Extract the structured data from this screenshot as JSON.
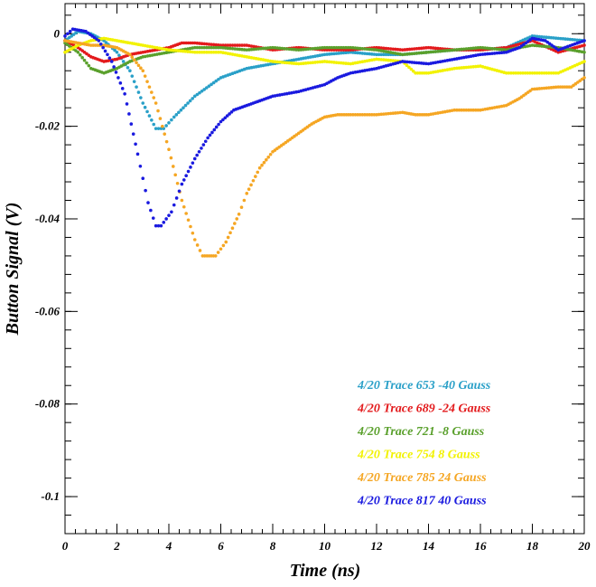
{
  "chart_data": {
    "type": "scatter",
    "title": "",
    "xlabel": "Time (ns)",
    "ylabel": "Button Signal (V)",
    "xlim": [
      0,
      20
    ],
    "ylim": [
      -0.108,
      0.0065
    ],
    "x_ticks": [
      0,
      2,
      4,
      6,
      8,
      10,
      12,
      14,
      16,
      18,
      20
    ],
    "y_ticks": [
      0,
      -0.02,
      -0.04,
      -0.06,
      -0.08,
      -0.1
    ],
    "x_tick_labels": [
      "0",
      "2",
      "4",
      "6",
      "8",
      "10",
      "12",
      "14",
      "16",
      "18",
      "20"
    ],
    "y_tick_labels": [
      "0",
      "-0.02",
      "-0.04",
      "-0.06",
      "-0.08",
      "-0.1"
    ],
    "grid": false,
    "legend_position": "bottom-right",
    "series": [
      {
        "name": "4/20 Trace 653  -40 Gauss",
        "color": "#2aa0c8",
        "points": [
          [
            0,
            -0.0015
          ],
          [
            0.5,
            0.0005
          ],
          [
            1,
            0.0
          ],
          [
            1.5,
            -0.0015
          ],
          [
            2,
            -0.004
          ],
          [
            2.5,
            -0.008
          ],
          [
            3,
            -0.015
          ],
          [
            3.5,
            -0.0205
          ],
          [
            3.8,
            -0.0205
          ],
          [
            4.2,
            -0.018
          ],
          [
            5,
            -0.0135
          ],
          [
            6,
            -0.0095
          ],
          [
            7,
            -0.0075
          ],
          [
            8,
            -0.0065
          ],
          [
            9,
            -0.0055
          ],
          [
            10,
            -0.0045
          ],
          [
            11,
            -0.004
          ],
          [
            12,
            -0.0045
          ],
          [
            13,
            -0.0045
          ],
          [
            14,
            -0.004
          ],
          [
            15,
            -0.0035
          ],
          [
            16,
            -0.0035
          ],
          [
            17,
            -0.003
          ],
          [
            18,
            -0.0005
          ],
          [
            19,
            -0.001
          ],
          [
            20,
            -0.0015
          ]
        ]
      },
      {
        "name": "4/20 Trace 689  -24 Gauss",
        "color": "#e31a1c",
        "points": [
          [
            0,
            -0.0015
          ],
          [
            0.5,
            -0.003
          ],
          [
            1,
            -0.005
          ],
          [
            1.5,
            -0.006
          ],
          [
            2,
            -0.0055
          ],
          [
            2.5,
            -0.0045
          ],
          [
            3,
            -0.004
          ],
          [
            4,
            -0.003
          ],
          [
            4.5,
            -0.002
          ],
          [
            5,
            -0.002
          ],
          [
            6,
            -0.0025
          ],
          [
            7,
            -0.0025
          ],
          [
            8,
            -0.0035
          ],
          [
            9,
            -0.003
          ],
          [
            10,
            -0.0035
          ],
          [
            11,
            -0.0035
          ],
          [
            12,
            -0.003
          ],
          [
            13,
            -0.0035
          ],
          [
            14,
            -0.003
          ],
          [
            15,
            -0.0035
          ],
          [
            16,
            -0.0035
          ],
          [
            17,
            -0.003
          ],
          [
            18,
            -0.0015
          ],
          [
            19,
            -0.004
          ],
          [
            20,
            -0.0025
          ]
        ]
      },
      {
        "name": "4/20 Trace 721  -8 Gauss",
        "color": "#5aa02c",
        "points": [
          [
            0,
            -0.002
          ],
          [
            0.5,
            -0.004
          ],
          [
            1,
            -0.0075
          ],
          [
            1.5,
            -0.0085
          ],
          [
            2,
            -0.0075
          ],
          [
            2.5,
            -0.006
          ],
          [
            3,
            -0.005
          ],
          [
            4,
            -0.004
          ],
          [
            5,
            -0.003
          ],
          [
            6,
            -0.003
          ],
          [
            7,
            -0.0035
          ],
          [
            8,
            -0.003
          ],
          [
            9,
            -0.0035
          ],
          [
            10,
            -0.003
          ],
          [
            11,
            -0.003
          ],
          [
            12,
            -0.0035
          ],
          [
            13,
            -0.0045
          ],
          [
            14,
            -0.004
          ],
          [
            15,
            -0.0035
          ],
          [
            16,
            -0.003
          ],
          [
            17,
            -0.0035
          ],
          [
            18,
            -0.0025
          ],
          [
            19,
            -0.003
          ],
          [
            20,
            -0.004
          ]
        ]
      },
      {
        "name": "4/20 Trace 754  8 Gauss",
        "color": "#f2f200",
        "points": [
          [
            0,
            -0.004
          ],
          [
            0.5,
            -0.0025
          ],
          [
            1,
            -0.0015
          ],
          [
            1.5,
            -0.001
          ],
          [
            2,
            -0.0015
          ],
          [
            2.5,
            -0.002
          ],
          [
            3,
            -0.0025
          ],
          [
            4,
            -0.0035
          ],
          [
            5,
            -0.004
          ],
          [
            6,
            -0.004
          ],
          [
            7,
            -0.005
          ],
          [
            8,
            -0.006
          ],
          [
            9,
            -0.0065
          ],
          [
            10,
            -0.006
          ],
          [
            11,
            -0.0065
          ],
          [
            12,
            -0.0055
          ],
          [
            13,
            -0.006
          ],
          [
            13.5,
            -0.0085
          ],
          [
            14,
            -0.0085
          ],
          [
            15,
            -0.0075
          ],
          [
            16,
            -0.007
          ],
          [
            17,
            -0.0085
          ],
          [
            18,
            -0.0085
          ],
          [
            19,
            -0.0085
          ],
          [
            20,
            -0.006
          ]
        ]
      },
      {
        "name": "4/20 Trace 785  24 Gauss",
        "color": "#f5a623",
        "points": [
          [
            0,
            -0.0015
          ],
          [
            0.5,
            -0.002
          ],
          [
            1,
            -0.0025
          ],
          [
            1.5,
            -0.0025
          ],
          [
            2,
            -0.003
          ],
          [
            2.5,
            -0.0045
          ],
          [
            3,
            -0.008
          ],
          [
            3.5,
            -0.015
          ],
          [
            4,
            -0.025
          ],
          [
            4.5,
            -0.036
          ],
          [
            5,
            -0.0445
          ],
          [
            5.3,
            -0.048
          ],
          [
            5.8,
            -0.048
          ],
          [
            6.2,
            -0.045
          ],
          [
            6.7,
            -0.039
          ],
          [
            7,
            -0.0345
          ],
          [
            7.5,
            -0.029
          ],
          [
            8,
            -0.0255
          ],
          [
            8.5,
            -0.0235
          ],
          [
            9,
            -0.0215
          ],
          [
            9.5,
            -0.0195
          ],
          [
            10,
            -0.018
          ],
          [
            10.5,
            -0.0175
          ],
          [
            11,
            -0.0175
          ],
          [
            12,
            -0.0175
          ],
          [
            13,
            -0.017
          ],
          [
            13.5,
            -0.0175
          ],
          [
            14,
            -0.0175
          ],
          [
            15,
            -0.0165
          ],
          [
            16,
            -0.0165
          ],
          [
            17,
            -0.0155
          ],
          [
            17.5,
            -0.014
          ],
          [
            18,
            -0.012
          ],
          [
            19,
            -0.0115
          ],
          [
            19.5,
            -0.0115
          ],
          [
            20,
            -0.0095
          ]
        ]
      },
      {
        "name": "4/20 Trace 817  40 Gauss",
        "color": "#1a1adf",
        "points": [
          [
            0,
            -0.0005
          ],
          [
            0.3,
            0.001
          ],
          [
            0.8,
            0.0005
          ],
          [
            1.3,
            -0.0015
          ],
          [
            1.8,
            -0.006
          ],
          [
            2.3,
            -0.013
          ],
          [
            2.8,
            -0.026
          ],
          [
            3.2,
            -0.0365
          ],
          [
            3.5,
            -0.0415
          ],
          [
            3.7,
            -0.0415
          ],
          [
            4.1,
            -0.0385
          ],
          [
            4.5,
            -0.0325
          ],
          [
            5,
            -0.027
          ],
          [
            5.5,
            -0.0225
          ],
          [
            6,
            -0.019
          ],
          [
            6.5,
            -0.0165
          ],
          [
            7,
            -0.0155
          ],
          [
            7.5,
            -0.0145
          ],
          [
            8,
            -0.0135
          ],
          [
            9,
            -0.0125
          ],
          [
            10,
            -0.011
          ],
          [
            10.5,
            -0.0095
          ],
          [
            11,
            -0.0085
          ],
          [
            12,
            -0.0075
          ],
          [
            13,
            -0.006
          ],
          [
            14,
            -0.0065
          ],
          [
            15,
            -0.0055
          ],
          [
            16,
            -0.0045
          ],
          [
            17,
            -0.004
          ],
          [
            17.5,
            -0.003
          ],
          [
            18,
            -0.001
          ],
          [
            18.5,
            -0.0015
          ],
          [
            19,
            -0.0035
          ],
          [
            20,
            -0.0015
          ]
        ]
      }
    ]
  }
}
